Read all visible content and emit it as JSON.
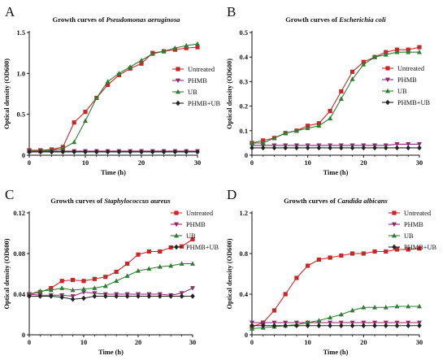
{
  "chart_data": [
    {
      "type": "line",
      "panel": "A",
      "title_prefix": "Growth curves of ",
      "title_species": "Pseudomonas aeruginosa",
      "xlabel": "Time (h)",
      "ylabel": "Optical density (OD600)",
      "xlim": [
        0,
        30
      ],
      "ylim": [
        0,
        1.5
      ],
      "xticks": [
        0,
        10,
        20,
        30
      ],
      "yticks": [
        0,
        0.5,
        1.0,
        1.5
      ],
      "ytick_labels": [
        "0",
        "0.5",
        "1.0",
        "1.5"
      ],
      "legend_position": "right",
      "grid": false,
      "x": [
        0,
        2,
        4,
        6,
        8,
        10,
        12,
        14,
        16,
        18,
        20,
        22,
        24,
        26,
        28,
        30
      ],
      "series": [
        {
          "name": "Untreated",
          "color": "#c62828",
          "marker": "square",
          "values": [
            0.06,
            0.06,
            0.07,
            0.1,
            0.4,
            0.53,
            0.7,
            0.86,
            0.98,
            1.06,
            1.12,
            1.25,
            1.27,
            1.29,
            1.31,
            1.32
          ]
        },
        {
          "name": "PHMB",
          "color": "#8e2a6e",
          "marker": "triangle-down",
          "values": [
            0.05,
            0.05,
            0.05,
            0.05,
            0.05,
            0.05,
            0.05,
            0.05,
            0.05,
            0.05,
            0.05,
            0.05,
            0.05,
            0.05,
            0.05,
            0.05
          ]
        },
        {
          "name": "UB",
          "color": "#2e7d32",
          "marker": "triangle",
          "values": [
            0.05,
            0.05,
            0.06,
            0.08,
            0.16,
            0.42,
            0.7,
            0.9,
            1.0,
            1.08,
            1.16,
            1.24,
            1.27,
            1.31,
            1.34,
            1.36
          ]
        },
        {
          "name": "PHMB+UB",
          "color": "#222222",
          "marker": "diamond",
          "values": [
            0.04,
            0.04,
            0.04,
            0.04,
            0.04,
            0.04,
            0.04,
            0.04,
            0.04,
            0.04,
            0.04,
            0.04,
            0.04,
            0.04,
            0.04,
            0.04
          ]
        }
      ]
    },
    {
      "type": "line",
      "panel": "B",
      "title_prefix": "Growth curves of ",
      "title_species": "Escherichia coli",
      "xlabel": "Time (h)",
      "ylabel": "Optical density (OD600)",
      "xlim": [
        0,
        30
      ],
      "ylim": [
        0,
        0.5
      ],
      "xticks": [
        0,
        10,
        20,
        30
      ],
      "yticks": [
        0,
        0.1,
        0.2,
        0.3,
        0.4,
        0.5
      ],
      "ytick_labels": [
        "0",
        "0.1",
        "0.2",
        "0.3",
        "0.4",
        "0.5"
      ],
      "legend_position": "right",
      "grid": false,
      "x": [
        0,
        2,
        4,
        6,
        8,
        10,
        12,
        14,
        16,
        18,
        20,
        22,
        24,
        26,
        28,
        30
      ],
      "series": [
        {
          "name": "Untreated",
          "color": "#c62828",
          "marker": "square",
          "values": [
            0.05,
            0.06,
            0.07,
            0.09,
            0.1,
            0.12,
            0.13,
            0.18,
            0.26,
            0.34,
            0.38,
            0.4,
            0.42,
            0.43,
            0.43,
            0.44
          ]
        },
        {
          "name": "PHMB",
          "color": "#8e2a6e",
          "marker": "triangle-down",
          "values": [
            0.04,
            0.04,
            0.04,
            0.04,
            0.04,
            0.04,
            0.04,
            0.04,
            0.04,
            0.04,
            0.04,
            0.04,
            0.04,
            0.045,
            0.045,
            0.045
          ]
        },
        {
          "name": "UB",
          "color": "#2e7d32",
          "marker": "triangle",
          "values": [
            0.05,
            0.05,
            0.07,
            0.09,
            0.1,
            0.11,
            0.12,
            0.15,
            0.23,
            0.31,
            0.37,
            0.4,
            0.41,
            0.42,
            0.42,
            0.42
          ]
        },
        {
          "name": "PHMB+UB",
          "color": "#222222",
          "marker": "diamond",
          "values": [
            0.03,
            0.03,
            0.03,
            0.03,
            0.03,
            0.03,
            0.03,
            0.03,
            0.03,
            0.03,
            0.03,
            0.03,
            0.03,
            0.03,
            0.03,
            0.03
          ]
        }
      ]
    },
    {
      "type": "line",
      "panel": "C",
      "title_prefix": "Growth curves of ",
      "title_species": "Staphylococcus aureus",
      "xlabel": "Time (h)",
      "ylabel": "Optical density (OD600)",
      "xlim": [
        0,
        30
      ],
      "ylim": [
        0,
        0.12
      ],
      "xticks": [
        0,
        10,
        20,
        30
      ],
      "yticks": [
        0,
        0.04,
        0.08,
        0.12
      ],
      "ytick_labels": [
        "0",
        "0.04",
        "0.08",
        "0.12"
      ],
      "legend_position": "top-right",
      "grid": false,
      "x": [
        0,
        2,
        4,
        6,
        8,
        10,
        12,
        14,
        16,
        18,
        20,
        22,
        24,
        26,
        28,
        30
      ],
      "series": [
        {
          "name": "Untreated",
          "color": "#c62828",
          "marker": "square",
          "values": [
            0.04,
            0.042,
            0.046,
            0.053,
            0.054,
            0.053,
            0.055,
            0.057,
            0.062,
            0.07,
            0.079,
            0.082,
            0.082,
            0.086,
            0.087,
            0.094
          ]
        },
        {
          "name": "PHMB",
          "color": "#8e2a6e",
          "marker": "triangle-down",
          "values": [
            0.04,
            0.039,
            0.039,
            0.039,
            0.038,
            0.042,
            0.041,
            0.04,
            0.04,
            0.04,
            0.04,
            0.04,
            0.04,
            0.039,
            0.041,
            0.046
          ]
        },
        {
          "name": "UB",
          "color": "#2e7d32",
          "marker": "triangle",
          "values": [
            0.04,
            0.043,
            0.044,
            0.046,
            0.044,
            0.045,
            0.046,
            0.048,
            0.053,
            0.058,
            0.063,
            0.065,
            0.067,
            0.068,
            0.07,
            0.07
          ]
        },
        {
          "name": "PHMB+UB",
          "color": "#222222",
          "marker": "diamond",
          "values": [
            0.038,
            0.038,
            0.038,
            0.037,
            0.035,
            0.036,
            0.038,
            0.038,
            0.038,
            0.038,
            0.038,
            0.038,
            0.038,
            0.038,
            0.038,
            0.038
          ]
        }
      ]
    },
    {
      "type": "line",
      "panel": "D",
      "title_prefix": "Growth curves of ",
      "title_species": "Candida albicans",
      "xlabel": "Time (h)",
      "ylabel": "Optical density (OD600)",
      "xlim": [
        0,
        30
      ],
      "ylim": [
        0,
        1.2
      ],
      "xticks": [
        0,
        10,
        20,
        30
      ],
      "yticks": [
        0,
        0.4,
        0.8,
        1.2
      ],
      "ytick_labels": [
        "0",
        "0.4",
        "0.8",
        "1.2"
      ],
      "legend_position": "top-right",
      "grid": false,
      "x": [
        0,
        2,
        4,
        6,
        8,
        10,
        12,
        14,
        16,
        18,
        20,
        22,
        24,
        26,
        28,
        30
      ],
      "series": [
        {
          "name": "Untreated",
          "color": "#c62828",
          "marker": "square",
          "values": [
            0.08,
            0.12,
            0.24,
            0.4,
            0.56,
            0.68,
            0.74,
            0.76,
            0.78,
            0.8,
            0.8,
            0.82,
            0.82,
            0.84,
            0.84,
            0.85
          ]
        },
        {
          "name": "PHMB",
          "color": "#8e2a6e",
          "marker": "triangle-down",
          "values": [
            0.12,
            0.12,
            0.12,
            0.12,
            0.12,
            0.12,
            0.12,
            0.12,
            0.12,
            0.12,
            0.12,
            0.12,
            0.12,
            0.12,
            0.12,
            0.12
          ]
        },
        {
          "name": "UB",
          "color": "#2e7d32",
          "marker": "triangle",
          "values": [
            0.06,
            0.07,
            0.08,
            0.09,
            0.1,
            0.12,
            0.14,
            0.17,
            0.2,
            0.24,
            0.27,
            0.27,
            0.27,
            0.28,
            0.28,
            0.28
          ]
        },
        {
          "name": "PHMB+UB",
          "color": "#222222",
          "marker": "diamond",
          "values": [
            0.09,
            0.09,
            0.09,
            0.09,
            0.09,
            0.09,
            0.09,
            0.09,
            0.09,
            0.09,
            0.09,
            0.09,
            0.09,
            0.09,
            0.09,
            0.09
          ]
        }
      ]
    }
  ]
}
